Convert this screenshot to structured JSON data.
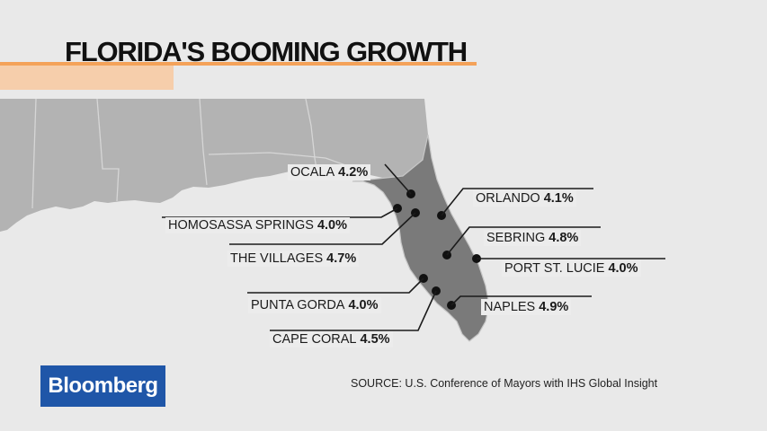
{
  "title": "FLORIDA'S BOOMING GROWTH",
  "source": "SOURCE: U.S. Conference of Mayors with IHS Global Insight",
  "logo": "Bloomberg",
  "colors": {
    "accent": "#f4a259",
    "land_fl": "#7a7a7a",
    "land_other": "#b3b3b3",
    "water": "#ececec",
    "brand": "#1f56a8"
  },
  "cities": [
    {
      "name": "OCALA",
      "growth": "4.2%"
    },
    {
      "name": "ORLANDO",
      "growth": "4.1%"
    },
    {
      "name": "HOMOSASSA SPRINGS",
      "growth": "4.0%"
    },
    {
      "name": "SEBRING",
      "growth": "4.8%"
    },
    {
      "name": "THE VILLAGES",
      "growth": "4.7%"
    },
    {
      "name": "PORT ST. LUCIE",
      "growth": "4.0%"
    },
    {
      "name": "PUNTA GORDA",
      "growth": "4.0%"
    },
    {
      "name": "NAPLES",
      "growth": "4.9%"
    },
    {
      "name": "CAPE CORAL",
      "growth": "4.5%"
    }
  ]
}
